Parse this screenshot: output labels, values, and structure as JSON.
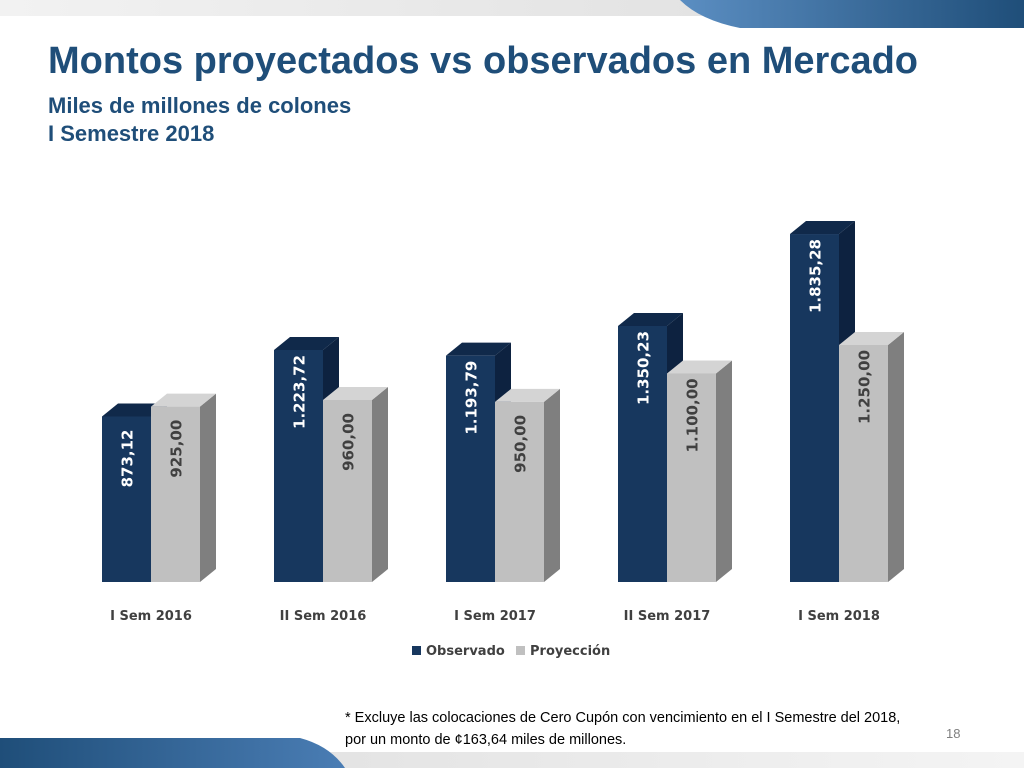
{
  "slide": {
    "title": "Montos proyectados vs observados en Mercado",
    "subtitle_line1": "Miles de millones de colones",
    "subtitle_line2": "I Semestre 2018",
    "footnote": "* Excluye las colocaciones de Cero Cupón con vencimiento en el I Semestre del 2018, por un monto de ¢163,64 miles de millones.",
    "page_number": "18"
  },
  "colors": {
    "accent": "#1f4e79",
    "observado": "#17375e",
    "proyeccion": "#c0c0c0"
  },
  "chart_data": {
    "type": "bar",
    "categories": [
      "I Sem 2016",
      "II Sem 2016",
      "I Sem 2017",
      "II Sem 2017",
      "I Sem 2018"
    ],
    "series": [
      {
        "name": "Observado",
        "values": [
          873.12,
          1223.72,
          1193.79,
          1350.23,
          1835.28
        ],
        "labels": [
          "873,12",
          "1.223,72",
          "1.193,79",
          "1.350,23",
          "1.835,28"
        ]
      },
      {
        "name": "Proyección",
        "values": [
          925.0,
          960.0,
          950.0,
          1100.0,
          1250.0
        ],
        "labels": [
          "925,00",
          "960,00",
          "950,00",
          "1.100,00",
          "1.250,00"
        ]
      }
    ],
    "legend": "bottom",
    "grid": false,
    "bar_style": "3d",
    "value_label_orientation": "vertical"
  }
}
